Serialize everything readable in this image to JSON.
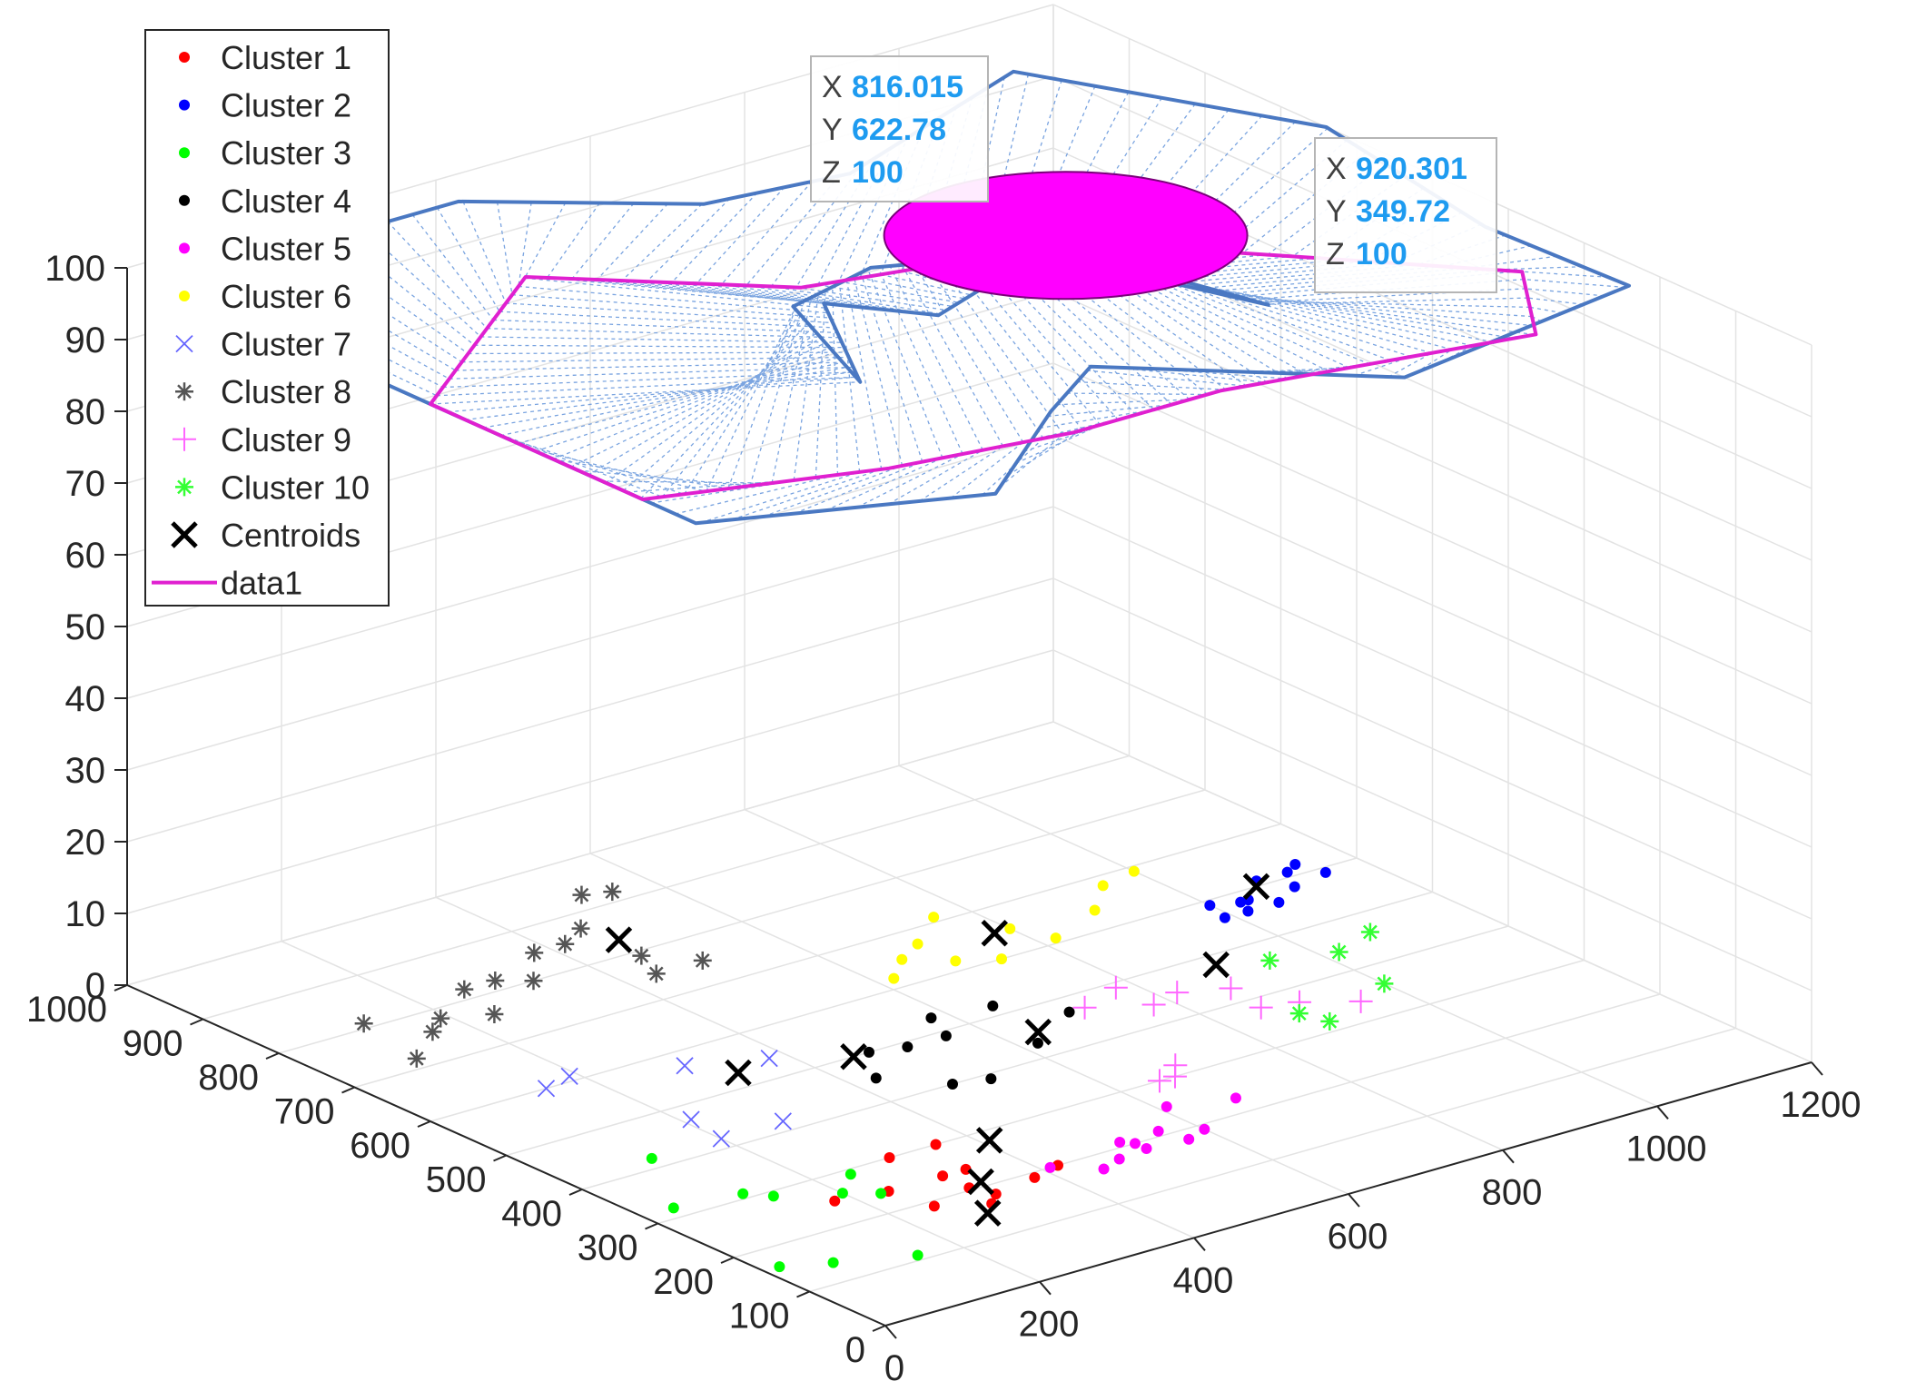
{
  "chart_data": {
    "type": "scatter",
    "dims": "3d",
    "title": "",
    "xlabel": "",
    "ylabel": "",
    "zlabel": "",
    "xlim": [
      0,
      1200
    ],
    "ylim": [
      0,
      1000
    ],
    "zlim": [
      0,
      100
    ],
    "xticks": [
      "0",
      "200",
      "400",
      "600",
      "800",
      "1000",
      "1200"
    ],
    "yticks": [
      "0",
      "100",
      "200",
      "300",
      "400",
      "500",
      "600",
      "700",
      "800",
      "900",
      "1000"
    ],
    "zticks": [
      "0",
      "10",
      "20",
      "30",
      "40",
      "50",
      "60",
      "70",
      "80",
      "90",
      "100"
    ],
    "grid": true,
    "legend_position": "top-left",
    "legend": [
      {
        "label": "Cluster 1",
        "color": "#ff0000",
        "marker": "dot"
      },
      {
        "label": "Cluster 2",
        "color": "#0000ff",
        "marker": "dot"
      },
      {
        "label": "Cluster 3",
        "color": "#00ff00",
        "marker": "dot"
      },
      {
        "label": "Cluster 4",
        "color": "#000000",
        "marker": "dot"
      },
      {
        "label": "Cluster 5",
        "color": "#ff00ff",
        "marker": "dot"
      },
      {
        "label": "Cluster 6",
        "color": "#ffff00",
        "marker": "dot"
      },
      {
        "label": "Cluster 7",
        "color": "#6666ff",
        "marker": "x"
      },
      {
        "label": "Cluster 8",
        "color": "#555555",
        "marker": "star"
      },
      {
        "label": "Cluster 9",
        "color": "#ff66ff",
        "marker": "plus"
      },
      {
        "label": "Cluster 10",
        "color": "#33ff33",
        "marker": "star"
      },
      {
        "label": "Centroids",
        "color": "#000000",
        "marker": "bigx"
      },
      {
        "label": "data1",
        "color": "#e020d0",
        "marker": "line"
      }
    ],
    "series": [
      {
        "name": "Cluster 1",
        "points": [
          [
            180,
            250
          ],
          [
            240,
            240
          ],
          [
            250,
            190
          ],
          [
            300,
            300
          ],
          [
            310,
            240
          ],
          [
            310,
            205
          ],
          [
            340,
            240
          ],
          [
            360,
            300
          ],
          [
            420,
            200
          ],
          [
            380,
            190
          ],
          [
            300,
            165
          ],
          [
            320,
            180
          ]
        ]
      },
      {
        "name": "Cluster 2",
        "points": [
          [
            990,
            560
          ],
          [
            1020,
            560
          ],
          [
            1040,
            580
          ],
          [
            1060,
            560
          ],
          [
            1080,
            610
          ],
          [
            1100,
            580
          ],
          [
            1120,
            610
          ],
          [
            1150,
            590
          ],
          [
            1140,
            620
          ],
          [
            1000,
            590
          ],
          [
            1030,
            580
          ]
        ]
      },
      {
        "name": "Cluster 3",
        "points": [
          [
            20,
            160
          ],
          [
            70,
            140
          ],
          [
            150,
            110
          ],
          [
            200,
            260
          ],
          [
            230,
            240
          ],
          [
            240,
            290
          ],
          [
            40,
            320
          ],
          [
            120,
            310
          ],
          [
            110,
            420
          ],
          [
            140,
            290
          ]
        ]
      },
      {
        "name": "Cluster 4",
        "points": [
          [
            430,
            450
          ],
          [
            480,
            400
          ],
          [
            520,
            390
          ],
          [
            510,
            490
          ],
          [
            560,
            490
          ],
          [
            580,
            530
          ],
          [
            620,
            430
          ],
          [
            650,
            520
          ],
          [
            700,
            470
          ],
          [
            470,
            500
          ]
        ]
      },
      {
        "name": "Cluster 5",
        "points": [
          [
            410,
            200
          ],
          [
            450,
            170
          ],
          [
            480,
            180
          ],
          [
            510,
            210
          ],
          [
            520,
            185
          ],
          [
            560,
            210
          ],
          [
            610,
            250
          ],
          [
            600,
            190
          ],
          [
            680,
            230
          ],
          [
            570,
            180
          ],
          [
            520,
            200
          ]
        ]
      },
      {
        "name": "Cluster 6",
        "points": [
          [
            620,
            620
          ],
          [
            660,
            650
          ],
          [
            700,
            620
          ],
          [
            700,
            670
          ],
          [
            740,
            600
          ],
          [
            800,
            650
          ],
          [
            820,
            610
          ],
          [
            900,
            640
          ],
          [
            950,
            680
          ],
          [
            1000,
            690
          ],
          [
            760,
            710
          ]
        ]
      },
      {
        "name": "Cluster 7",
        "points": [
          [
            150,
            600
          ],
          [
            200,
            420
          ],
          [
            210,
            470
          ],
          [
            280,
            420
          ],
          [
            300,
            570
          ],
          [
            380,
            540
          ],
          [
            190,
            610
          ]
        ]
      },
      {
        "name": "Cluster 8",
        "points": [
          [
            100,
            720
          ],
          [
            120,
            810
          ],
          [
            160,
            760
          ],
          [
            190,
            780
          ],
          [
            240,
            760
          ],
          [
            260,
            820
          ],
          [
            300,
            820
          ],
          [
            330,
            800
          ],
          [
            380,
            850
          ],
          [
            420,
            850
          ],
          [
            460,
            870
          ],
          [
            520,
            930
          ],
          [
            550,
            920
          ],
          [
            440,
            750
          ],
          [
            460,
            790
          ],
          [
            500,
            750
          ]
        ]
      },
      {
        "name": "Cluster 9",
        "points": [
          [
            650,
            300
          ],
          [
            670,
            300
          ],
          [
            690,
            320
          ],
          [
            720,
            470
          ],
          [
            780,
            490
          ],
          [
            780,
            440
          ],
          [
            820,
            450
          ],
          [
            870,
            430
          ],
          [
            860,
            380
          ],
          [
            900,
            370
          ],
          [
            950,
            340
          ]
        ]
      },
      {
        "name": "Cluster 10",
        "points": [
          [
            880,
            350
          ],
          [
            890,
            320
          ],
          [
            950,
            460
          ],
          [
            1000,
            360
          ],
          [
            1020,
            440
          ],
          [
            1080,
            460
          ]
        ]
      },
      {
        "name": "Centroids",
        "points": [
          [
            280,
            150
          ],
          [
            410,
            280
          ],
          [
            330,
            210
          ],
          [
            450,
            500
          ],
          [
            640,
            450
          ],
          [
            900,
            480
          ],
          [
            1070,
            600
          ],
          [
            780,
            650
          ],
          [
            330,
            530
          ],
          [
            470,
            830
          ]
        ]
      }
    ],
    "surface": {
      "z": 100,
      "outer_boundary": [
        [
          0,
          950
        ],
        [
          380,
          950
        ],
        [
          570,
          820
        ],
        [
          740,
          800
        ],
        [
          1050,
          900
        ],
        [
          1200,
          640
        ],
        [
          1150,
          380
        ],
        [
          1160,
          200
        ],
        [
          820,
          150
        ],
        [
          590,
          330
        ],
        [
          480,
          270
        ],
        [
          290,
          150
        ],
        [
          0,
          250
        ]
      ],
      "inner_boundary": [
        [
          380,
          420
        ],
        [
          490,
          580
        ],
        [
          560,
          500
        ],
        [
          750,
          560
        ],
        [
          840,
          350
        ],
        [
          780,
          550
        ],
        [
          590,
          620
        ],
        [
          460,
          590
        ]
      ],
      "data1_curve": [
        [
          0,
          600
        ],
        [
          300,
          780
        ],
        [
          500,
          620
        ],
        [
          800,
          560
        ],
        [
          1100,
          280
        ],
        [
          1000,
          160
        ],
        [
          650,
          220
        ],
        [
          460,
          220
        ],
        [
          250,
          250
        ],
        [
          0,
          320
        ]
      ]
    },
    "datatips": [
      {
        "x_label": "X",
        "x": "816.015",
        "y_label": "Y",
        "y": "622.78",
        "z_label": "Z",
        "z": "100"
      },
      {
        "x_label": "X",
        "x": "920.301",
        "y_label": "Y",
        "y": "349.72",
        "z_label": "Z",
        "z": "100"
      }
    ],
    "ellipse": {
      "x": 816.015,
      "y": 622.78,
      "z": 100,
      "color": "#ff00ff"
    }
  }
}
